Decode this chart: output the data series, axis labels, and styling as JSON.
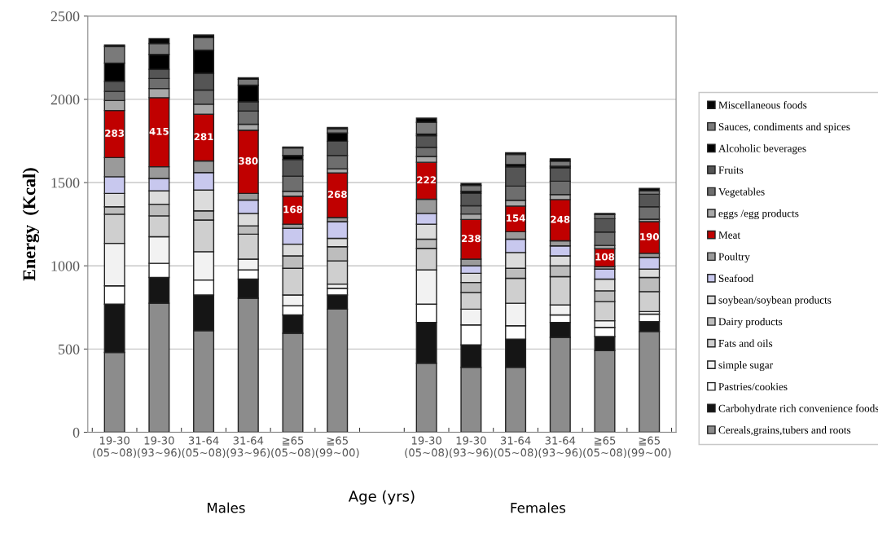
{
  "chart_data": {
    "type": "bar",
    "stacked": true,
    "categories": [
      "19-30\n(05~08)",
      "19-30\n(93~96)",
      "31-64\n(05~08)",
      "31-64\n(93~96)",
      "≧65\n(05~08)",
      "≧65\n(99~00)",
      null,
      "19-30\n(05~08)",
      "19-30\n(93~96)",
      "31-64\n(05~08)",
      "31-64\n(93~96)",
      "≧65\n(05~08)",
      "≧65\n(99~00)"
    ],
    "xlabel": "Age (yrs)",
    "ylabel": "Energy  (Kcal)",
    "annotations": [
      "Males",
      "Females"
    ],
    "ylim": [
      0,
      2500
    ],
    "yticks": [
      0,
      500,
      1000,
      1500,
      2000,
      2500
    ],
    "grid": "y",
    "legend": "right",
    "series": [
      {
        "name": "Cereals,grains,tubers and roots",
        "color": "#8c8c8c",
        "values": [
          480,
          775,
          610,
          805,
          595,
          740,
          null,
          415,
          390,
          390,
          570,
          490,
          605
        ]
      },
      {
        "name": "Carbohydrate rich convenience foods",
        "color": "#151515",
        "values": [
          290,
          155,
          215,
          115,
          110,
          85,
          null,
          245,
          135,
          170,
          90,
          85,
          60
        ]
      },
      {
        "name": "Pastries/cookies",
        "color": "#ffffff",
        "values": [
          110,
          85,
          90,
          55,
          55,
          40,
          null,
          110,
          120,
          80,
          45,
          55,
          45
        ]
      },
      {
        "name": "simple sugar",
        "color": "#f2f2f2",
        "values": [
          255,
          160,
          170,
          65,
          65,
          25,
          null,
          205,
          95,
          135,
          60,
          40,
          15
        ]
      },
      {
        "name": "Fats and oils",
        "color": "#cfcfcf",
        "values": [
          175,
          125,
          190,
          150,
          160,
          140,
          null,
          130,
          100,
          150,
          170,
          115,
          120
        ]
      },
      {
        "name": "Dairy products",
        "color": "#bdbdbd",
        "values": [
          45,
          70,
          55,
          50,
          75,
          85,
          null,
          55,
          60,
          60,
          65,
          65,
          85
        ]
      },
      {
        "name": "soybean/soybean products",
        "color": "#dcdcdc",
        "values": [
          80,
          80,
          125,
          75,
          70,
          50,
          null,
          90,
          55,
          95,
          60,
          70,
          50
        ]
      },
      {
        "name": "Seafood",
        "color": "#c8c8ee",
        "values": [
          100,
          75,
          105,
          80,
          95,
          100,
          null,
          65,
          45,
          80,
          60,
          60,
          70
        ]
      },
      {
        "name": "Poultry",
        "color": "#9a9a9a",
        "values": [
          115,
          70,
          70,
          40,
          25,
          25,
          null,
          85,
          40,
          45,
          30,
          15,
          25
        ]
      },
      {
        "name": "Meat",
        "color": "#c00000",
        "values": [
          283,
          415,
          281,
          380,
          168,
          268,
          null,
          222,
          238,
          154,
          248,
          108,
          190
        ],
        "value_labels": [
          "283",
          "415",
          "281",
          "380",
          "168",
          "268",
          null,
          "222",
          "238",
          "154",
          "248",
          "108",
          "190"
        ]
      },
      {
        "name": "eggs /egg products",
        "color": "#a8a8a8",
        "values": [
          60,
          55,
          60,
          35,
          30,
          25,
          null,
          35,
          33,
          35,
          30,
          20,
          15
        ]
      },
      {
        "name": "Vegetables",
        "color": "#6e6e6e",
        "values": [
          55,
          60,
          85,
          80,
          90,
          80,
          null,
          55,
          50,
          85,
          80,
          80,
          75
        ]
      },
      {
        "name": "Fruits",
        "color": "#555555",
        "values": [
          60,
          55,
          100,
          55,
          100,
          85,
          null,
          70,
          75,
          115,
          80,
          80,
          75
        ]
      },
      {
        "name": "Alcoholic beverages",
        "color": "#000000",
        "values": [
          110,
          90,
          140,
          100,
          25,
          50,
          null,
          10,
          12,
          15,
          10,
          null,
          null
        ]
      },
      {
        "name": "Sauces, condiments and spices",
        "color": "#7a7a7a",
        "values": [
          100,
          65,
          75,
          35,
          45,
          25,
          null,
          70,
          35,
          60,
          30,
          25,
          20
        ]
      },
      {
        "name": "Miscellaneous foods",
        "color": "#050505",
        "values": [
          8,
          30,
          15,
          10,
          5,
          8,
          null,
          25,
          12,
          10,
          15,
          7,
          15
        ]
      }
    ]
  }
}
